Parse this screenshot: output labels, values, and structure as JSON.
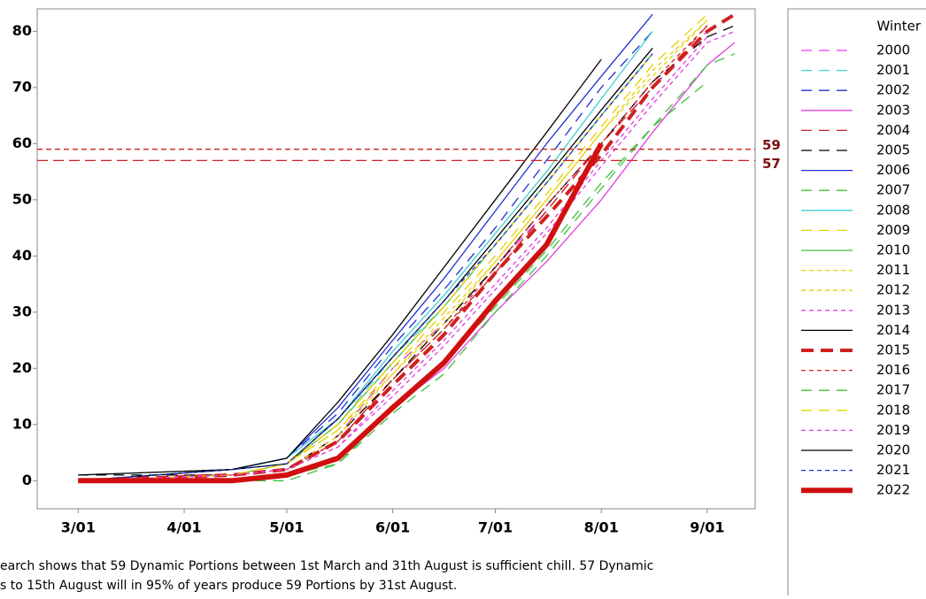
{
  "chart_data": {
    "type": "line",
    "legend_title": "Winter",
    "x": [
      0,
      45,
      61,
      76,
      92,
      107,
      122,
      137,
      153,
      168,
      184,
      192
    ],
    "xlim": [
      -12,
      198
    ],
    "xticks": [
      {
        "value": 0,
        "label": "3/01"
      },
      {
        "value": 31,
        "label": "4/01"
      },
      {
        "value": 61,
        "label": "5/01"
      },
      {
        "value": 92,
        "label": "6/01"
      },
      {
        "value": 122,
        "label": "7/01"
      },
      {
        "value": 153,
        "label": "8/01"
      },
      {
        "value": 184,
        "label": "9/01"
      }
    ],
    "ylim": [
      -5,
      84
    ],
    "yticks": [
      0,
      10,
      20,
      30,
      40,
      50,
      60,
      70,
      80
    ],
    "hlines": [
      59,
      57
    ],
    "hline_color": "#d02020",
    "legend": "right",
    "series": [
      {
        "name": "2000",
        "color": "#e040e0",
        "dash": "long",
        "values": [
          0,
          1,
          2,
          8,
          20,
          28,
          38,
          48,
          60,
          70,
          80,
          null
        ]
      },
      {
        "name": "2001",
        "color": "#40d0d0",
        "dash": "long",
        "values": [
          1,
          2,
          3,
          10,
          22,
          31,
          42,
          53,
          65,
          76,
          null,
          null
        ]
      },
      {
        "name": "2002",
        "color": "#2030d0",
        "dash": "long",
        "values": [
          0,
          2,
          4,
          12,
          24,
          34,
          45,
          57,
          70,
          80,
          null,
          null
        ]
      },
      {
        "name": "2003",
        "color": "#e040e0",
        "dash": "solid",
        "values": [
          0,
          0,
          1,
          4,
          13,
          20,
          30,
          39,
          50,
          62,
          74,
          78
        ]
      },
      {
        "name": "2004",
        "color": "#d02020",
        "dash": "long",
        "values": [
          0,
          1,
          2,
          7,
          18,
          27,
          37,
          48,
          60,
          70,
          81,
          null
        ]
      },
      {
        "name": "2005",
        "color": "#000000",
        "dash": "long",
        "values": [
          1,
          1,
          2,
          8,
          18,
          28,
          38,
          49,
          60,
          71,
          79,
          81
        ]
      },
      {
        "name": "2006",
        "color": "#2030d0",
        "dash": "solid",
        "values": [
          0,
          2,
          4,
          13,
          25,
          36,
          48,
          60,
          72,
          83,
          null,
          null
        ]
      },
      {
        "name": "2007",
        "color": "#40c040",
        "dash": "long",
        "values": [
          0,
          0,
          0,
          3,
          13,
          21,
          31,
          41,
          53,
          63,
          71,
          null
        ]
      },
      {
        "name": "2008",
        "color": "#40d0d0",
        "dash": "solid",
        "values": [
          0,
          2,
          4,
          11,
          23,
          33,
          44,
          55,
          68,
          80,
          null,
          null
        ]
      },
      {
        "name": "2009",
        "color": "#e8d000",
        "dash": "long",
        "values": [
          0,
          1,
          3,
          9,
          20,
          30,
          40,
          51,
          63,
          74,
          83,
          null
        ]
      },
      {
        "name": "2010",
        "color": "#40c040",
        "dash": "solid",
        "values": [
          0,
          1,
          3,
          10,
          21,
          31,
          42,
          53,
          65,
          76,
          null,
          null
        ]
      },
      {
        "name": "2011",
        "color": "#e8d000",
        "dash": "short",
        "values": [
          0,
          1,
          3,
          9,
          19,
          29,
          39,
          50,
          62,
          73,
          82,
          null
        ]
      },
      {
        "name": "2012",
        "color": "#e8d000",
        "dash": "short",
        "values": [
          0,
          1,
          2,
          8,
          19,
          28,
          39,
          50,
          62,
          72,
          82,
          null
        ]
      },
      {
        "name": "2013",
        "color": "#e040e0",
        "dash": "short",
        "values": [
          0,
          1,
          2,
          6,
          16,
          25,
          35,
          45,
          57,
          68,
          79,
          null
        ]
      },
      {
        "name": "2014",
        "color": "#000000",
        "dash": "solid",
        "values": [
          0,
          2,
          3,
          11,
          22,
          32,
          43,
          54,
          66,
          77,
          null,
          null
        ]
      },
      {
        "name": "2015",
        "color": "#d02020",
        "dash": "thick-long",
        "values": [
          0,
          1,
          2,
          7,
          17,
          26,
          37,
          47,
          58,
          70,
          80,
          83
        ]
      },
      {
        "name": "2016",
        "color": "#d02020",
        "dash": "short",
        "values": [
          0,
          1,
          2,
          7,
          18,
          27,
          38,
          49,
          60,
          71,
          81,
          null
        ]
      },
      {
        "name": "2017",
        "color": "#40c040",
        "dash": "long",
        "values": [
          0,
          0,
          1,
          3,
          12,
          19,
          30,
          40,
          52,
          63,
          74,
          76
        ]
      },
      {
        "name": "2018",
        "color": "#e8d000",
        "dash": "long",
        "values": [
          0,
          1,
          3,
          10,
          21,
          31,
          42,
          53,
          65,
          76,
          null,
          null
        ]
      },
      {
        "name": "2019",
        "color": "#e040e0",
        "dash": "short",
        "values": [
          0,
          1,
          2,
          6,
          15,
          24,
          34,
          44,
          56,
          67,
          78,
          80
        ]
      },
      {
        "name": "2020",
        "color": "#000000",
        "dash": "solid",
        "values": [
          1,
          2,
          4,
          14,
          26,
          38,
          50,
          62,
          75,
          null,
          null,
          null
        ]
      },
      {
        "name": "2021",
        "color": "#2030d0",
        "dash": "short",
        "values": [
          0,
          2,
          3,
          11,
          22,
          32,
          42,
          53,
          65,
          76,
          null,
          null
        ]
      },
      {
        "name": "2022",
        "color": "#d01010",
        "dash": "thick",
        "values": [
          0,
          0,
          1,
          4,
          13,
          21,
          32,
          42,
          60,
          null,
          null,
          null
        ]
      }
    ],
    "footnote": [
      "earch shows that 59 Dynamic Portions between 1st March and 31th August is sufficient chill. 57 Dynamic",
      "s to 15th August will in 95% of years produce 59 Portions by 31st August."
    ]
  }
}
